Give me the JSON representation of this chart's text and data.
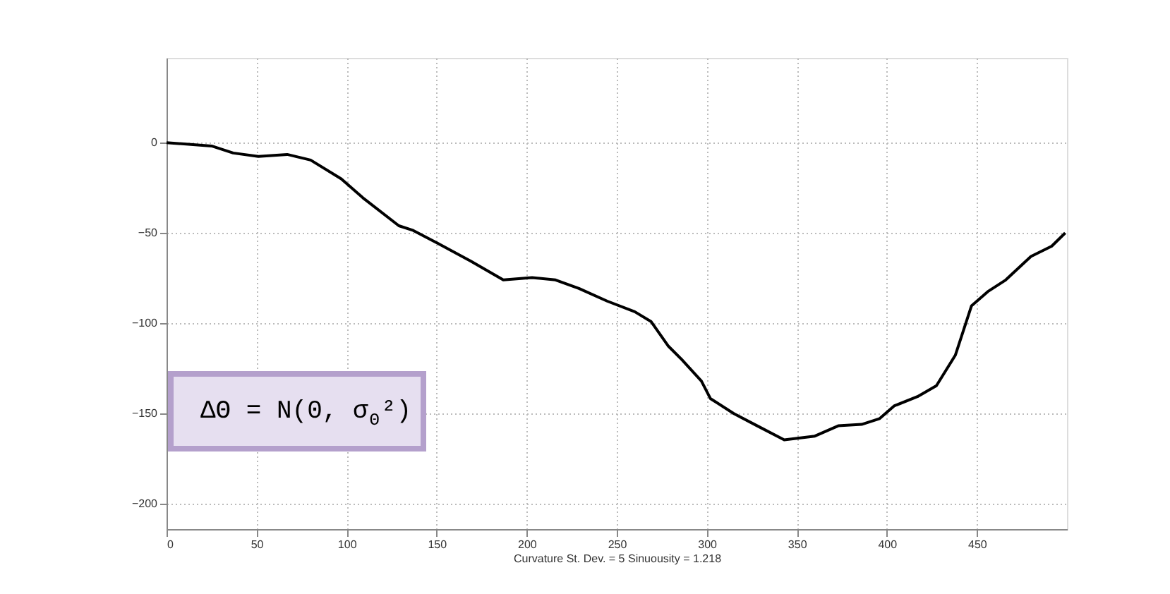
{
  "chart_data": {
    "type": "line",
    "xlabel": "Curvature St. Dev. = 5  Sinuousity = 1.218",
    "annotations": [
      "ΔΘ = N(0, σ$_{Θ}$²)"
    ],
    "series": [
      {
        "color": "#000000",
        "x": [
          0,
          25,
          37,
          51,
          67,
          80,
          97,
          109,
          129,
          137,
          150.5,
          169,
          187,
          203,
          216,
          229,
          244.6,
          260,
          269,
          278.5,
          286,
          297,
          302,
          315,
          328,
          343,
          360,
          373,
          386,
          396,
          404,
          417,
          427.5,
          438,
          447,
          456,
          466,
          480,
          491.5,
          499
        ],
        "values": [
          0,
          -1.8,
          -5.7,
          -7.6,
          -6.5,
          -9.6,
          -20,
          -30.5,
          -46,
          -48.6,
          -55.7,
          -65.6,
          -76,
          -74.7,
          -76,
          -80.7,
          -87.7,
          -93.6,
          -99,
          -112.5,
          -120,
          -132,
          -141.7,
          -150,
          -156.8,
          -164.6,
          -162.5,
          -156.8,
          -156,
          -152.8,
          -145.8,
          -140.6,
          -134.6,
          -117.7,
          -90.3,
          -82.5,
          -76,
          -63,
          -57.3,
          -50
        ]
      }
    ],
    "xlim": [
      0,
      500
    ],
    "ylim": [
      -214,
      47
    ],
    "xticks": [
      0,
      50,
      100,
      150,
      200,
      250,
      300,
      350,
      400,
      450
    ],
    "yticks": [
      -200,
      -150,
      -100,
      -50,
      0
    ],
    "grid": true,
    "marker": "none",
    "line_style": "solid"
  }
}
